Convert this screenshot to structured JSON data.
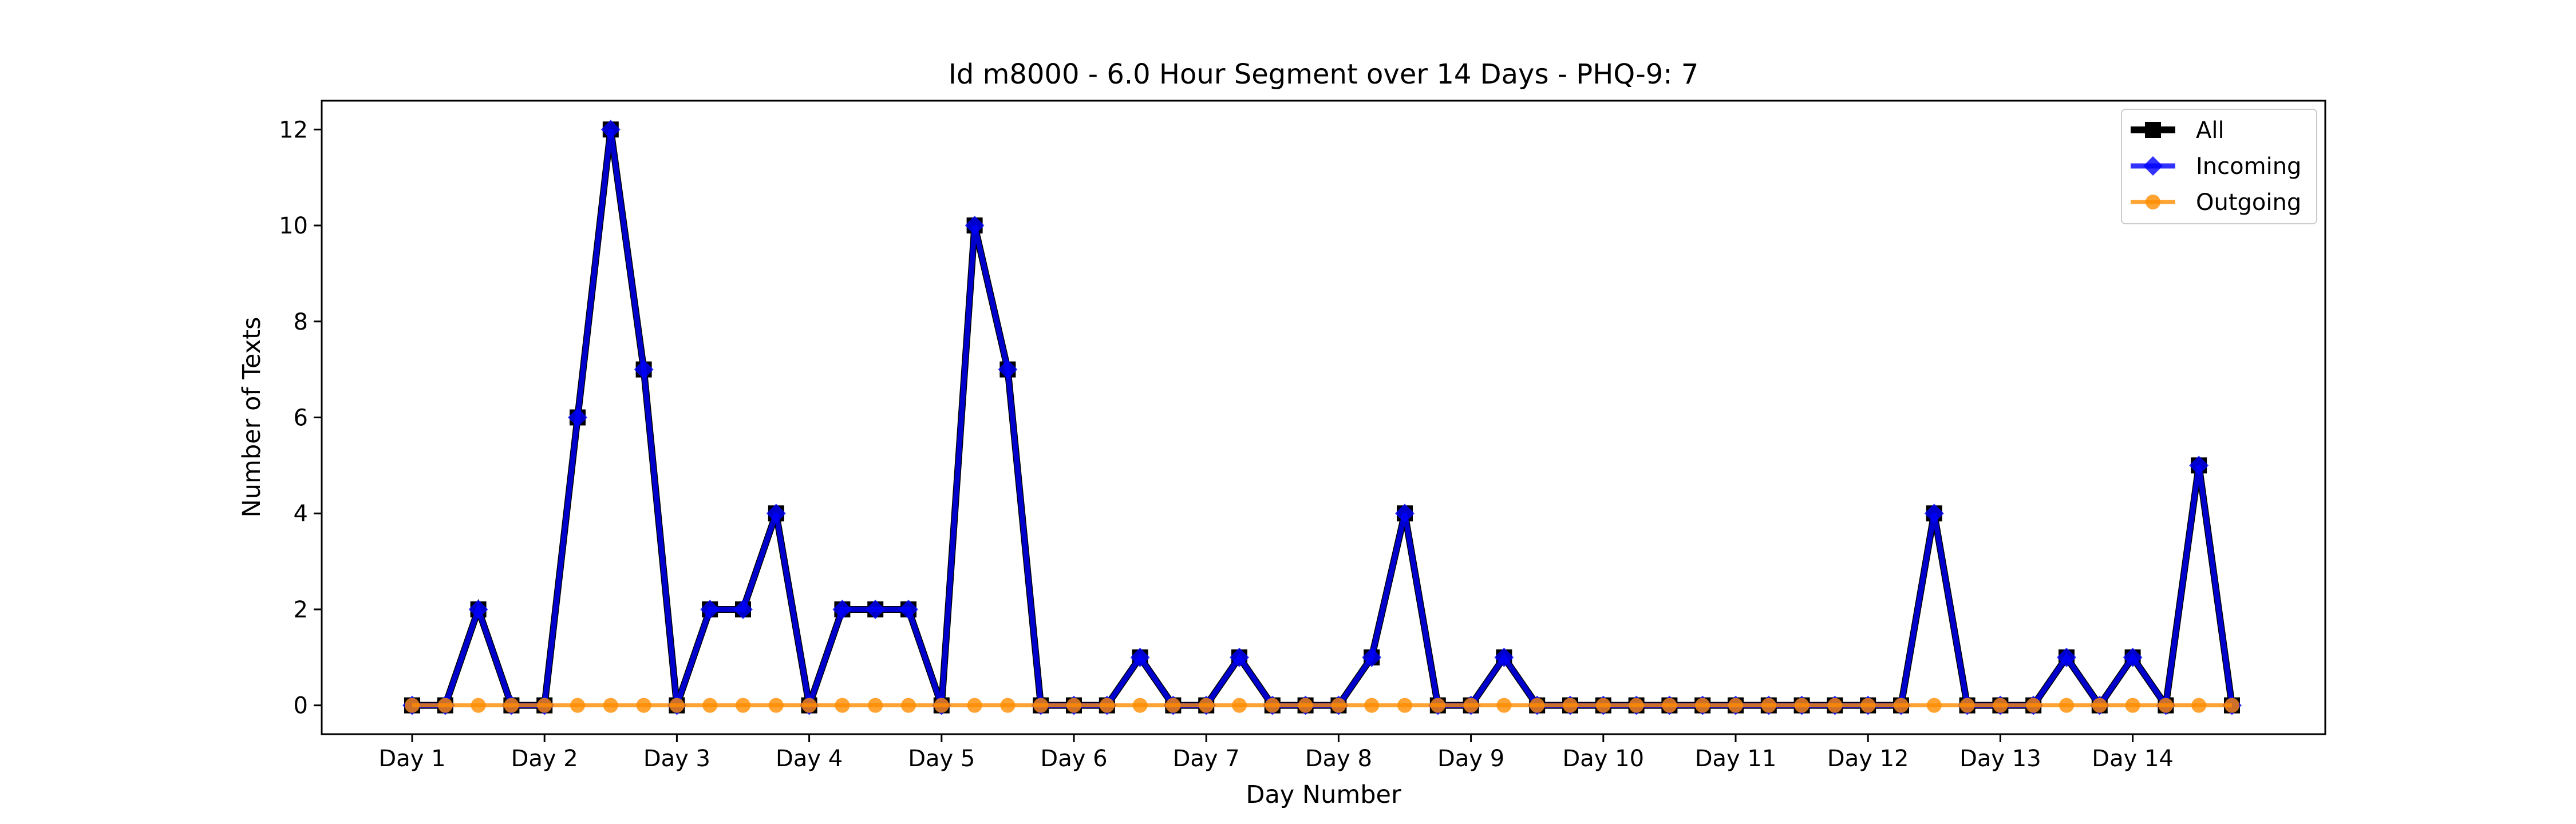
{
  "chart_data": {
    "type": "line",
    "title": "Id m8000 - 6.0 Hour Segment over 14 Days - PHQ-9: 7",
    "xlabel": "Day Number",
    "ylabel": "Number of Texts",
    "x_tick_labels": [
      "Day 1",
      "Day 2",
      "Day 3",
      "Day 4",
      "Day 5",
      "Day 6",
      "Day 7",
      "Day 8",
      "Day 9",
      "Day 10",
      "Day 11",
      "Day 12",
      "Day 13",
      "Day 14"
    ],
    "y_ticks": [
      0,
      2,
      4,
      6,
      8,
      10,
      12
    ],
    "ylim": [
      -0.6,
      12.6
    ],
    "legend_position": "top-right",
    "series": [
      {
        "name": "All",
        "color": "#000000",
        "marker": "square",
        "values": [
          0,
          0,
          2,
          0,
          0,
          6,
          12,
          7,
          0,
          2,
          2,
          4,
          0,
          2,
          2,
          2,
          0,
          10,
          7,
          0,
          0,
          0,
          1,
          0,
          0,
          1,
          0,
          0,
          0,
          1,
          4,
          0,
          0,
          1,
          0,
          0,
          0,
          0,
          0,
          0,
          0,
          0,
          0,
          0,
          0,
          0,
          4,
          0,
          0,
          0,
          1,
          0,
          1,
          0,
          5,
          0
        ]
      },
      {
        "name": "Incoming",
        "color": "#0000ff",
        "marker": "diamond",
        "values": [
          0,
          0,
          2,
          0,
          0,
          6,
          12,
          7,
          0,
          2,
          2,
          4,
          0,
          2,
          2,
          2,
          0,
          10,
          7,
          0,
          0,
          0,
          1,
          0,
          0,
          1,
          0,
          0,
          0,
          1,
          4,
          0,
          0,
          1,
          0,
          0,
          0,
          0,
          0,
          0,
          0,
          0,
          0,
          0,
          0,
          0,
          4,
          0,
          0,
          0,
          1,
          0,
          1,
          0,
          5,
          0
        ]
      },
      {
        "name": "Outgoing",
        "color": "#ff8c00",
        "marker": "circle",
        "values": [
          0,
          0,
          0,
          0,
          0,
          0,
          0,
          0,
          0,
          0,
          0,
          0,
          0,
          0,
          0,
          0,
          0,
          0,
          0,
          0,
          0,
          0,
          0,
          0,
          0,
          0,
          0,
          0,
          0,
          0,
          0,
          0,
          0,
          0,
          0,
          0,
          0,
          0,
          0,
          0,
          0,
          0,
          0,
          0,
          0,
          0,
          0,
          0,
          0,
          0,
          0,
          0,
          0,
          0,
          0,
          0
        ]
      }
    ]
  }
}
